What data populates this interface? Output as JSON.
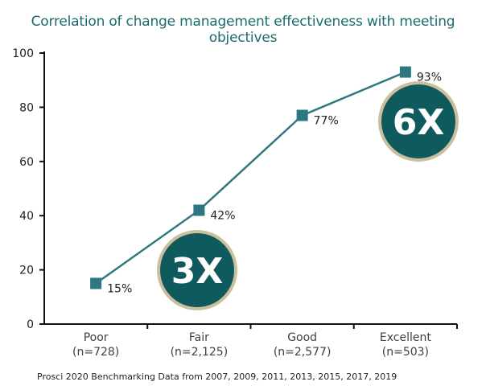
{
  "chart_data": {
    "type": "line",
    "title": "Correlation of change management effectiveness with meeting objectives",
    "categories": [
      {
        "name": "Poor",
        "n": "(n=728)"
      },
      {
        "name": "Fair",
        "n": "(n=2,125)"
      },
      {
        "name": "Good",
        "n": "(n=2,577)"
      },
      {
        "name": "Excellent",
        "n": "(n=503)"
      }
    ],
    "values": [
      15,
      42,
      77,
      93
    ],
    "data_labels": [
      "15%",
      "42%",
      "77%",
      "93%"
    ],
    "ylim": [
      0,
      100
    ],
    "yticks": [
      0,
      20,
      40,
      60,
      80,
      100
    ],
    "callouts": [
      {
        "text": "3X",
        "near_category": 1
      },
      {
        "text": "6X",
        "near_category": 3
      }
    ],
    "colors": {
      "line": "#2f7780",
      "marker": "#2f7780",
      "callout_fill": "#0f5a5d",
      "callout_ring": "#cbbfa0",
      "title": "#1b6a6e"
    },
    "source": "Prosci 2020 Benchmarking Data from 2007, 2009, 2011, 2013, 2015, 2017, 2019"
  }
}
